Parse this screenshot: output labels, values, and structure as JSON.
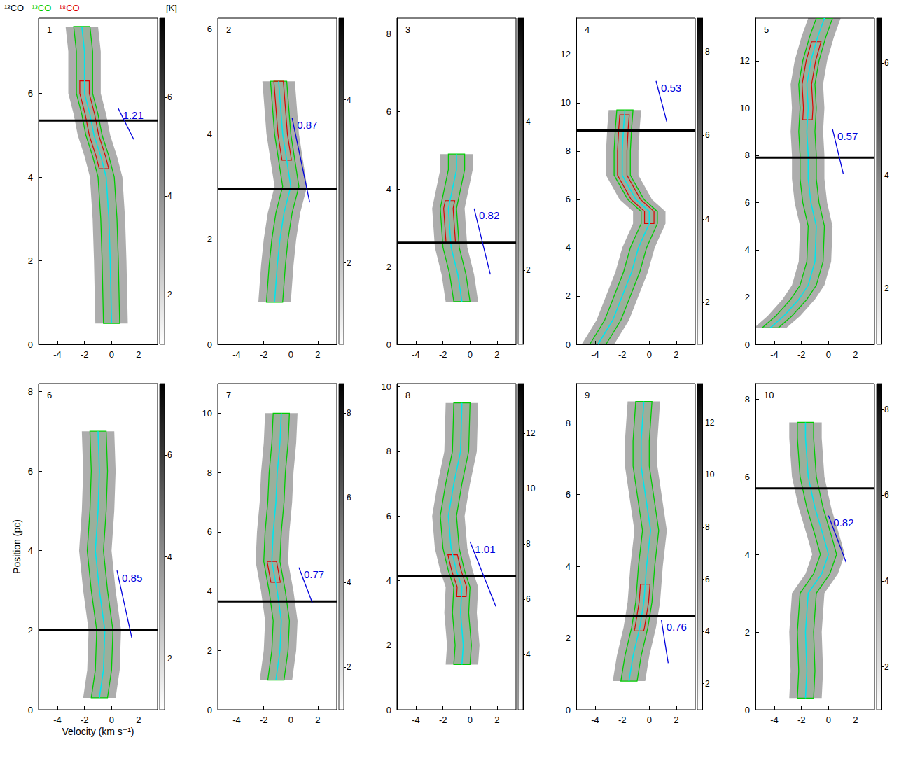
{
  "chart_data": {
    "type": "position-velocity",
    "tracers": [
      {
        "name": "¹²CO",
        "color": "#000000",
        "halfwidth": 1.2
      },
      {
        "name": "¹³CO",
        "color": "#00cc00",
        "halfwidth": 0.6
      },
      {
        "name": "¹⁸CO",
        "color": "#dd0000",
        "halfwidth": 0.35
      }
    ],
    "colorbar_unit": "[K]",
    "xlabel": "Velocity (km s⁻¹)",
    "ylabel": "Position (pc)",
    "xlim": [
      -5.4,
      3.4
    ],
    "xticks": [
      -4,
      -2,
      0,
      2
    ],
    "panels": [
      {
        "label": "1",
        "ylim": [
          0,
          7.8
        ],
        "yticks": [
          0,
          2,
          4,
          6
        ],
        "ridge": {
          "x": [
            0,
            -0.1,
            -0.2,
            -0.4,
            -0.8,
            -1.3,
            -1.6,
            -2.0,
            -2.0,
            -2.0,
            -2.2
          ],
          "y": [
            0.5,
            2,
            3,
            4,
            4.5,
            5,
            5.5,
            6,
            6.5,
            7,
            7.6
          ]
        },
        "reference_position": 5.35,
        "gradient": {
          "value": 1.21,
          "x": [
            0.48,
            1.64
          ],
          "y": [
            5.65,
            4.9
          ]
        },
        "colorbar": {
          "range": [
            1,
            7.6
          ],
          "ticks": [
            2,
            4,
            6
          ]
        },
        "c18o_extent": [
          [
            4.2,
            6.3
          ]
        ]
      },
      {
        "label": "2",
        "ylim": [
          0,
          6.2
        ],
        "yticks": [
          0,
          2,
          4,
          6
        ],
        "ridge": {
          "x": [
            -1.2,
            -1.0,
            -0.8,
            -0.5,
            0,
            -0.3,
            -0.6,
            -0.9
          ],
          "y": [
            0.8,
            1.5,
            2.0,
            2.5,
            3.0,
            3.5,
            4.0,
            5.0
          ]
        },
        "reference_position": 2.95,
        "gradient": {
          "value": 0.87,
          "x": [
            0.1,
            1.4
          ],
          "y": [
            4.3,
            2.7
          ]
        },
        "colorbar": {
          "range": [
            1,
            5
          ],
          "ticks": [
            2,
            4
          ]
        },
        "c18o_extent": [
          [
            3.5,
            5.0
          ]
        ]
      },
      {
        "label": "3",
        "ylim": [
          0,
          8.4
        ],
        "yticks": [
          0,
          2,
          4,
          6,
          8
        ],
        "ridge": {
          "x": [
            -0.6,
            -0.9,
            -1.4,
            -1.6,
            -1.3,
            -1.0,
            -1.0
          ],
          "y": [
            1.1,
            1.8,
            2.5,
            3.5,
            4.0,
            4.5,
            4.9
          ]
        },
        "reference_position": 2.62,
        "gradient": {
          "value": 0.82,
          "x": [
            0.3,
            1.5
          ],
          "y": [
            3.5,
            1.8
          ]
        },
        "colorbar": {
          "range": [
            1,
            5.4
          ],
          "ticks": [
            2,
            4
          ]
        },
        "c18o_extent": [
          [
            2.6,
            3.7
          ]
        ]
      },
      {
        "label": "4",
        "ylim": [
          0,
          13.5
        ],
        "yticks": [
          0,
          2,
          4,
          6,
          8,
          10,
          12
        ],
        "ridge": {
          "x": [
            -3.8,
            -2.7,
            -2.0,
            -1.3,
            -0.8,
            0,
            0,
            -1.0,
            -2.0,
            -2.0,
            -1.9,
            -1.8
          ],
          "y": [
            0,
            1,
            2,
            3,
            4,
            5,
            5.5,
            6,
            7,
            8,
            9,
            9.7
          ]
        },
        "reference_position": 8.85,
        "gradient": {
          "value": 0.53,
          "x": [
            0.5,
            1.3
          ],
          "y": [
            10.9,
            9.2
          ]
        },
        "colorbar": {
          "range": [
            1,
            8.8
          ],
          "ticks": [
            2,
            4,
            6,
            8
          ]
        },
        "c18o_extent": [
          [
            5.0,
            9.5
          ]
        ]
      },
      {
        "label": "5",
        "ylim": [
          0,
          13.8
        ],
        "yticks": [
          0,
          2,
          4,
          6,
          8,
          10,
          12
        ],
        "ridge": {
          "x": [
            -4.3,
            -3.3,
            -2.2,
            -1.5,
            -1.0,
            -0.9,
            -1.3,
            -1.5,
            -1.5,
            -1.6,
            -1.5,
            -1.6,
            -1.3,
            -0.8,
            -0.3
          ],
          "y": [
            0.7,
            1.2,
            1.9,
            2.5,
            3.5,
            5,
            6,
            7,
            8,
            9,
            10,
            11,
            12,
            13,
            13.8
          ]
        },
        "reference_position": 7.9,
        "gradient": {
          "value": 0.57,
          "x": [
            0.3,
            1.1
          ],
          "y": [
            9.1,
            7.2
          ]
        },
        "colorbar": {
          "range": [
            1,
            6.8
          ],
          "ticks": [
            2,
            4,
            6
          ]
        },
        "c18o_extent": [
          [
            9.5,
            12.8
          ]
        ]
      },
      {
        "label": "6",
        "ylim": [
          0,
          8.2
        ],
        "yticks": [
          0,
          2,
          4,
          6,
          8
        ],
        "ridge": {
          "x": [
            -0.9,
            -0.6,
            -0.5,
            -0.9,
            -1.2,
            -1.0,
            -0.9,
            -1.0
          ],
          "y": [
            0.3,
            1,
            2,
            3,
            4,
            5,
            6,
            7
          ]
        },
        "reference_position": 2.0,
        "gradient": {
          "value": 0.85,
          "x": [
            0.4,
            1.5
          ],
          "y": [
            3.5,
            1.8
          ]
        },
        "colorbar": {
          "range": [
            1,
            7.4
          ],
          "ticks": [
            2,
            4,
            6
          ]
        },
        "c18o_extent": []
      },
      {
        "label": "7",
        "ylim": [
          0,
          11
        ],
        "yticks": [
          0,
          2,
          4,
          6,
          8,
          10
        ],
        "ridge": {
          "x": [
            -1.1,
            -0.8,
            -0.7,
            -1.0,
            -1.4,
            -1.3,
            -1.1,
            -1.0,
            -0.8,
            -0.7
          ],
          "y": [
            1,
            2,
            3,
            4,
            5,
            6,
            7,
            8,
            9,
            10
          ]
        },
        "reference_position": 3.65,
        "gradient": {
          "value": 0.77,
          "x": [
            0.6,
            1.6
          ],
          "y": [
            4.8,
            3.6
          ]
        },
        "colorbar": {
          "range": [
            1,
            8.7
          ],
          "ticks": [
            2,
            4,
            6,
            8
          ]
        },
        "c18o_extent": [
          [
            4.3,
            5.0
          ]
        ]
      },
      {
        "label": "8",
        "ylim": [
          0,
          10.1
        ],
        "yticks": [
          0,
          2,
          4,
          6,
          8,
          10
        ],
        "ridge": {
          "x": [
            -0.6,
            -0.5,
            -0.7,
            -0.6,
            -1.0,
            -1.4,
            -1.6,
            -1.2,
            -0.7,
            -0.6
          ],
          "y": [
            1.4,
            2,
            3,
            3.8,
            4.3,
            5,
            6,
            7,
            8,
            9.5
          ]
        },
        "reference_position": 4.15,
        "gradient": {
          "value": 1.01,
          "x": [
            0,
            1.9
          ],
          "y": [
            5.2,
            3.2
          ]
        },
        "colorbar": {
          "range": [
            2,
            13.8
          ],
          "ticks": [
            4,
            6,
            8,
            10,
            12
          ]
        },
        "c18o_extent": [
          [
            3.5,
            4.8
          ]
        ]
      },
      {
        "label": "9",
        "ylim": [
          0,
          9.1
        ],
        "yticks": [
          0,
          2,
          4,
          6,
          8
        ],
        "ridge": {
          "x": [
            -1.5,
            -1.2,
            -0.7,
            -0.4,
            -0.3,
            -0.2,
            0.1,
            -0.6,
            -0.6,
            -0.4
          ],
          "y": [
            0.8,
            1.5,
            2.3,
            3,
            3.5,
            4,
            5,
            6.8,
            7.5,
            8.6
          ]
        },
        "reference_position": 2.62,
        "gradient": {
          "value": 0.76,
          "x": [
            0.9,
            1.4
          ],
          "y": [
            2.5,
            1.3
          ]
        },
        "colorbar": {
          "range": [
            1,
            13.5
          ],
          "ticks": [
            2,
            4,
            6,
            8,
            10,
            12
          ]
        },
        "c18o_extent": [
          [
            2.2,
            3.5
          ]
        ]
      },
      {
        "label": "10",
        "ylim": [
          0,
          8.4
        ],
        "yticks": [
          0,
          2,
          4,
          6,
          8
        ],
        "ridge": {
          "x": [
            -1.7,
            -1.6,
            -1.7,
            -1.5,
            -0.5,
            0,
            -0.4,
            -1.0,
            -1.5,
            -1.7,
            -1.7
          ],
          "y": [
            0.3,
            1,
            2,
            3,
            3.5,
            4,
            4.5,
            5.2,
            6,
            7,
            7.4
          ]
        },
        "reference_position": 5.7,
        "gradient": {
          "value": 0.82,
          "x": [
            0,
            1.3
          ],
          "y": [
            5.0,
            3.8
          ]
        },
        "colorbar": {
          "range": [
            1,
            8.6
          ],
          "ticks": [
            2,
            4,
            6,
            8
          ]
        },
        "c18o_extent": []
      }
    ]
  }
}
